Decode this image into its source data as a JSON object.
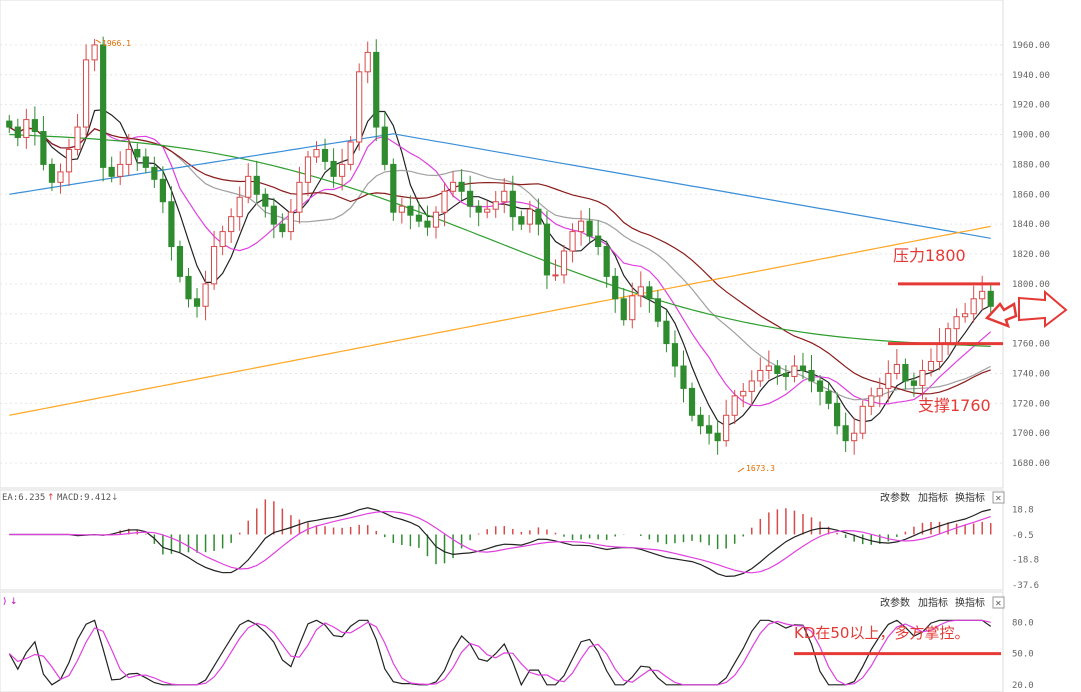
{
  "colors": {
    "up": "#d84a4a",
    "down": "#2e8b2e",
    "ma5": "#222222",
    "ma10": "#e040e0",
    "ma20": "#a0a0a0",
    "ma30": "#8b1a1a",
    "ma60": "#2e9e2e",
    "ma120": "#3a8fd8",
    "ma250": "#ffa726",
    "annotation": "#e53935",
    "grid": "#e6e6e6"
  },
  "panel_buttons": {
    "params": "改参数",
    "add": "加指标",
    "switch": "换指标",
    "close": "✕"
  },
  "macd_header": {
    "dea": "EA:6.235",
    "macd": "MACD:9.412"
  },
  "kd_header": {
    "prefix": ")"
  },
  "annotations": {
    "resistance": "压力1800",
    "support": "支撑1760",
    "kd_note": "KD在50以上，多方掌控。",
    "high_label": "1966.1",
    "low_label": "1673.3"
  },
  "chart_data": [
    {
      "type": "candlestick",
      "ylim": [
        1670,
        1970
      ],
      "y_ticks": [
        "1960.00",
        "1940.00",
        "1920.00",
        "1900.00",
        "1880.00",
        "1860.00",
        "1840.00",
        "1820.00",
        "1800.00",
        "1780.00",
        "1760.00",
        "1740.00",
        "1720.00",
        "1700.00",
        "1680.00"
      ],
      "close": [
        1905,
        1898,
        1910,
        1902,
        1880,
        1868,
        1875,
        1890,
        1905,
        1950,
        1960,
        1878,
        1872,
        1880,
        1890,
        1885,
        1878,
        1870,
        1855,
        1825,
        1805,
        1790,
        1785,
        1800,
        1825,
        1835,
        1845,
        1858,
        1872,
        1860,
        1852,
        1840,
        1835,
        1848,
        1868,
        1885,
        1890,
        1882,
        1872,
        1880,
        1895,
        1942,
        1955,
        1905,
        1880,
        1848,
        1852,
        1846,
        1842,
        1838,
        1848,
        1862,
        1868,
        1862,
        1852,
        1848,
        1850,
        1855,
        1862,
        1845,
        1840,
        1850,
        1840,
        1806,
        1806,
        1822,
        1835,
        1842,
        1832,
        1825,
        1805,
        1790,
        1776,
        1792,
        1798,
        1790,
        1775,
        1760,
        1745,
        1730,
        1712,
        1705,
        1700,
        1695,
        1712,
        1725,
        1728,
        1735,
        1742,
        1745,
        1740,
        1738,
        1745,
        1742,
        1735,
        1728,
        1720,
        1705,
        1695,
        1700,
        1718,
        1725,
        1730,
        1740,
        1746,
        1735,
        1732,
        1742,
        1748,
        1760,
        1770,
        1778,
        1780,
        1790,
        1795,
        1785
      ],
      "resistance_line": 1800,
      "support_line": 1760,
      "high": 1966.1,
      "low": 1673.3
    },
    {
      "type": "bar+line",
      "name": "MACD",
      "y_ticks": [
        "18.8",
        "-0.5",
        "-18.8",
        "-37.6"
      ],
      "ylim": [
        -40,
        22
      ]
    },
    {
      "type": "line",
      "name": "KD",
      "y_ticks": [
        "80.0",
        "50.0",
        "20.0"
      ],
      "ylim": [
        15,
        90
      ],
      "note_line": 50
    }
  ]
}
